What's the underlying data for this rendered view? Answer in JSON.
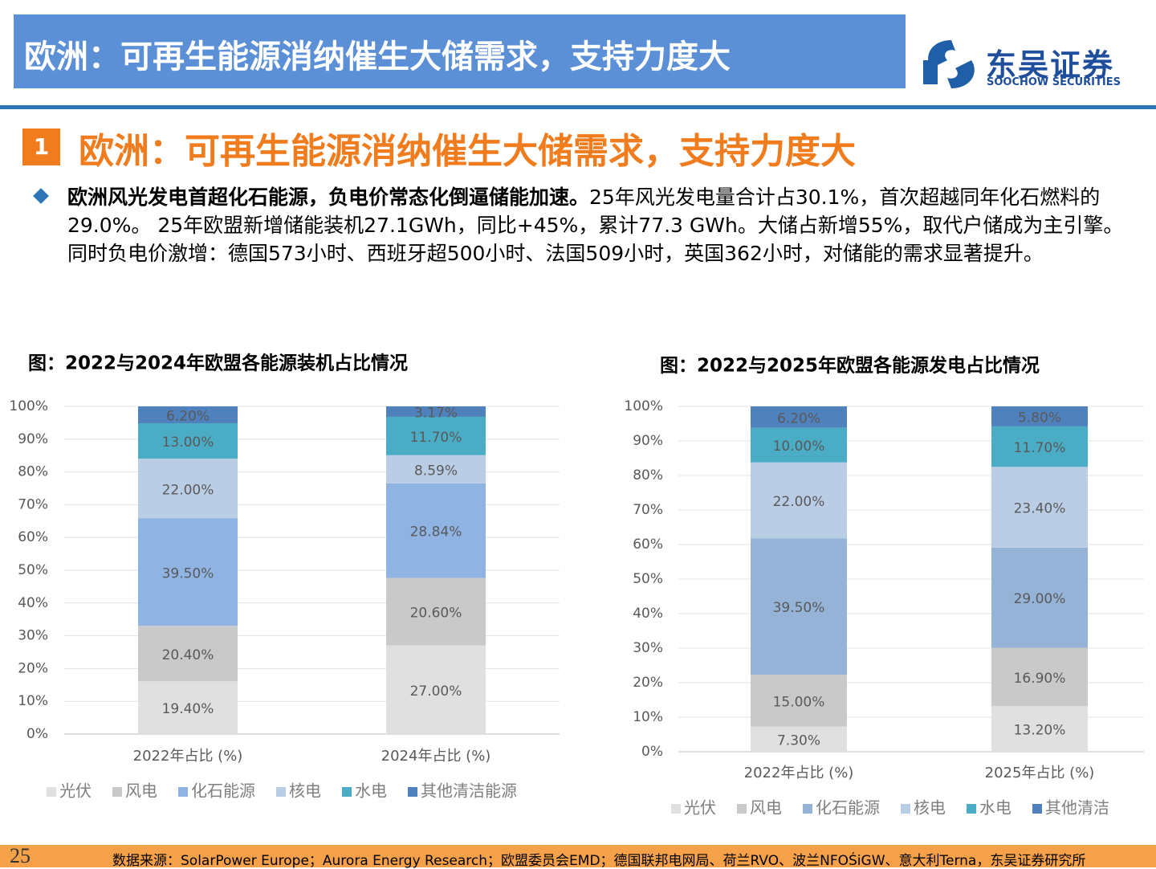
{
  "header": {
    "title": "欧洲：可再生能源消纳催生大储需求，支持力度大"
  },
  "logo": {
    "name": "东吴证券",
    "subtitle": "SOOCHOW SECURITIES"
  },
  "section": {
    "number": "1",
    "title": "欧洲：可再生能源消纳催生大储需求，支持力度大"
  },
  "bullet": {
    "bold": "欧洲风光发电首超化石能源，负电价常态化倒逼储能加速。",
    "text": "25年风光发电量合计占30.1%，首次超越同年化石燃料的29.0%。 25年欧盟新增储能装机27.1GWh，同比+45%，累计77.3 GWh。大储占新增55%，取代户储成为主引擎。同时负电价激增：德国573小时、西班牙超500小时、法国509小时，英国362小时，对储能的需求显著提升。"
  },
  "chart_data": [
    {
      "type": "bar",
      "stacking": "percent",
      "title": "图：2022与2024年欧盟各能源装机占比情况",
      "categories": [
        "2022年占比 (%)",
        "2024年占比 (%)"
      ],
      "series": [
        {
          "name": "光伏",
          "color": "#e0e0e0",
          "values": [
            19.4,
            27.0
          ],
          "value_labels": [
            "19.40%",
            "27.00%"
          ]
        },
        {
          "name": "风电",
          "color": "#c9c9c9",
          "values": [
            20.4,
            20.6
          ],
          "value_labels": [
            "20.40%",
            "20.60%"
          ]
        },
        {
          "name": "化石能源",
          "color": "#8fb4e3",
          "values": [
            39.5,
            28.84
          ],
          "value_labels": [
            "39.50%",
            "28.84%"
          ]
        },
        {
          "name": "核电",
          "color": "#b9cde5",
          "values": [
            22.0,
            8.59
          ],
          "value_labels": [
            "22.00%",
            "8.59%"
          ]
        },
        {
          "name": "水电",
          "color": "#4bacc6",
          "values": [
            13.0,
            11.7
          ],
          "value_labels": [
            "13.00%",
            "11.70%"
          ]
        },
        {
          "name": "其他清洁能源",
          "color": "#4f81bd",
          "values": [
            6.2,
            3.17
          ],
          "value_labels": [
            "6.20%",
            "3.17%"
          ]
        }
      ],
      "ylim": [
        0,
        100
      ],
      "yticks": [
        {
          "value": 0,
          "label": "0%"
        },
        {
          "value": 10,
          "label": "10%"
        },
        {
          "value": 20,
          "label": "20%"
        },
        {
          "value": 30,
          "label": "30%"
        },
        {
          "value": 40,
          "label": "40%"
        },
        {
          "value": 50,
          "label": "50%"
        },
        {
          "value": 60,
          "label": "60%"
        },
        {
          "value": 70,
          "label": "70%"
        },
        {
          "value": 80,
          "label": "80%"
        },
        {
          "value": 90,
          "label": "90%"
        },
        {
          "value": 100,
          "label": "100%"
        }
      ],
      "grid": true,
      "legend": "bottom"
    },
    {
      "type": "bar",
      "stacking": "percent",
      "title": "图：2022与2025年欧盟各能源发电占比情况",
      "categories": [
        "2022年占比 (%)",
        "2025年占比 (%)"
      ],
      "series": [
        {
          "name": "光伏",
          "color": "#e0e0e0",
          "values": [
            7.3,
            13.2
          ],
          "value_labels": [
            "7.30%",
            "13.20%"
          ]
        },
        {
          "name": "风电",
          "color": "#c9c9c9",
          "values": [
            15.0,
            16.9
          ],
          "value_labels": [
            "15.00%",
            "16.90%"
          ]
        },
        {
          "name": "化石能源",
          "color": "#95b3d7",
          "values": [
            39.5,
            29.0
          ],
          "value_labels": [
            "39.50%",
            "29.00%"
          ]
        },
        {
          "name": "核电",
          "color": "#b9cde5",
          "values": [
            22.0,
            23.4
          ],
          "value_labels": [
            "22.00%",
            "23.40%"
          ]
        },
        {
          "name": "水电",
          "color": "#4bacc6",
          "values": [
            10.0,
            11.7
          ],
          "value_labels": [
            "10.00%",
            "11.70%"
          ]
        },
        {
          "name": "其他清洁",
          "color": "#4f81bd",
          "values": [
            6.2,
            5.8
          ],
          "value_labels": [
            "6.20%",
            "5.80%"
          ]
        }
      ],
      "ylim": [
        0,
        100
      ],
      "yticks": [
        {
          "value": 0,
          "label": "0%"
        },
        {
          "value": 10,
          "label": "10%"
        },
        {
          "value": 20,
          "label": "20%"
        },
        {
          "value": 30,
          "label": "30%"
        },
        {
          "value": 40,
          "label": "40%"
        },
        {
          "value": 50,
          "label": "50%"
        },
        {
          "value": 60,
          "label": "60%"
        },
        {
          "value": 70,
          "label": "70%"
        },
        {
          "value": 80,
          "label": "80%"
        },
        {
          "value": 90,
          "label": "90%"
        },
        {
          "value": 100,
          "label": "100%"
        }
      ],
      "grid": true,
      "legend": "bottom"
    }
  ],
  "footer": {
    "page": "25",
    "source": "数据来源：SolarPower Europe；Aurora Energy Research；欧盟委员会EMD；德国联邦电网局、荷兰RVO、波兰NFOŚiGW、意大利Terna，东吴证券研究所"
  }
}
